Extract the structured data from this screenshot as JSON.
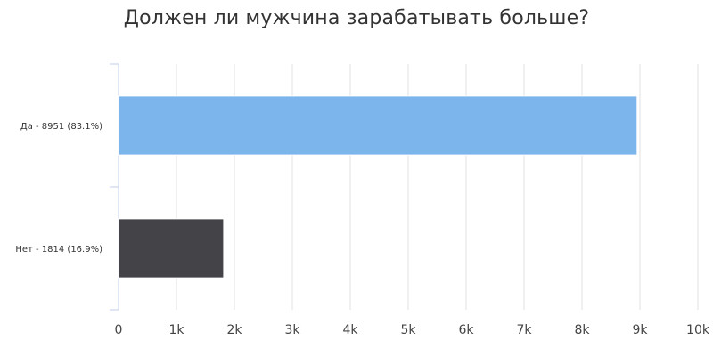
{
  "chart_data": {
    "type": "bar",
    "orientation": "horizontal",
    "title": "Должен ли мужчина зарабатывать больше?",
    "xlabel": "",
    "ylabel": "",
    "categories": [
      "Да - 8951 (83.1%)",
      "Нет - 1814 (16.9%)"
    ],
    "values": [
      8951,
      1814
    ],
    "colors": [
      "#7cb5ec",
      "#434348"
    ],
    "xlim": [
      0,
      10000
    ],
    "ticks": [
      {
        "value": 0,
        "label": "0"
      },
      {
        "value": 1000,
        "label": "1k"
      },
      {
        "value": 2000,
        "label": "2k"
      },
      {
        "value": 3000,
        "label": "3k"
      },
      {
        "value": 4000,
        "label": "4k"
      },
      {
        "value": 5000,
        "label": "5k"
      },
      {
        "value": 6000,
        "label": "6k"
      },
      {
        "value": 7000,
        "label": "7k"
      },
      {
        "value": 8000,
        "label": "8k"
      },
      {
        "value": 9000,
        "label": "9k"
      },
      {
        "value": 10000,
        "label": "10k"
      }
    ],
    "grid": true,
    "legend": "none"
  }
}
